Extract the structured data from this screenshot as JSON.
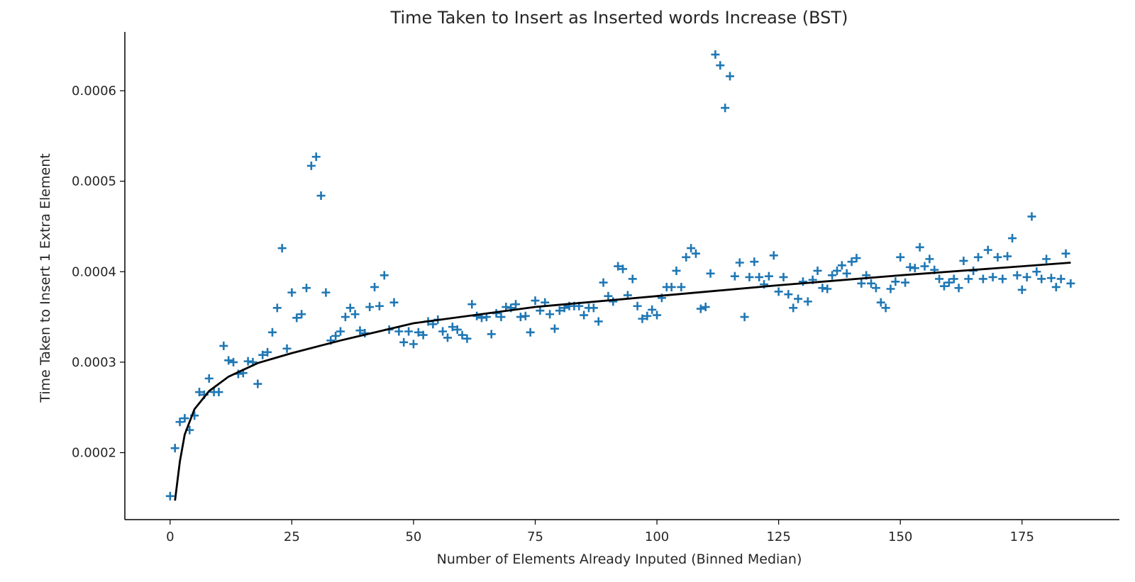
{
  "chart_data": {
    "type": "scatter",
    "title": "Time Taken to Insert as Inserted words Increase (BST)",
    "xlabel": "Number of Elements Already Inputed (Binned Median)",
    "ylabel": "Time Taken to Insert 1 Extra Element",
    "xlim": [
      -9.3,
      195
    ],
    "ylim": [
      0.000126,
      0.000665
    ],
    "xticks": [
      0,
      25,
      50,
      75,
      100,
      125,
      150,
      175
    ],
    "xtick_labels": [
      "0",
      "25",
      "50",
      "75",
      "100",
      "125",
      "150",
      "175"
    ],
    "yticks": [
      0.0002,
      0.0003,
      0.0004,
      0.0005,
      0.0006
    ],
    "ytick_labels": [
      "0.0002",
      "0.0003",
      "0.0004",
      "0.0005",
      "0.0006"
    ],
    "grid": false,
    "legend": "none",
    "marker": "+",
    "marker_color": "#1f77b4",
    "line_color": "#000000",
    "fit_curve": {
      "description": "logarithmic fit",
      "x": [
        1,
        2,
        3,
        5,
        8,
        12,
        18,
        25,
        35,
        50,
        75,
        100,
        125,
        150,
        175,
        185
      ],
      "y": [
        0.000147,
        0.00019,
        0.00022,
        0.000248,
        0.000268,
        0.000284,
        0.000299,
        0.00031,
        0.000324,
        0.000343,
        0.000361,
        0.000373,
        0.000385,
        0.000396,
        0.000406,
        0.00041
      ]
    },
    "series": [
      {
        "x": [
          0,
          1,
          2,
          3,
          4,
          5,
          6,
          7,
          8,
          9,
          10,
          11,
          12,
          13,
          14,
          15,
          16,
          17,
          18,
          19,
          20,
          21,
          22,
          23,
          24,
          25,
          26,
          27,
          28,
          29,
          30,
          31,
          32,
          33,
          34,
          35,
          36,
          37,
          38,
          39,
          40,
          41,
          42,
          43,
          44,
          45,
          46,
          47,
          48,
          49,
          50,
          51,
          52,
          53,
          54,
          55,
          56,
          57,
          58,
          59,
          60,
          61,
          62,
          63,
          64,
          65,
          66,
          67,
          68,
          69,
          70,
          71,
          72,
          73,
          74,
          75,
          76,
          77,
          78,
          79,
          80,
          81,
          82,
          83,
          84,
          85,
          86,
          87,
          88,
          89,
          90,
          91,
          92,
          93,
          94,
          95,
          96,
          97,
          98,
          99,
          100,
          101,
          102,
          103,
          104,
          105,
          106,
          107,
          108,
          109,
          110,
          111,
          112,
          113,
          114,
          115,
          116,
          117,
          118,
          119,
          120,
          121,
          122,
          123,
          124,
          125,
          126,
          127,
          128,
          129,
          130,
          131,
          132,
          133,
          134,
          135,
          136,
          137,
          138,
          139,
          140,
          141,
          142,
          143,
          144,
          145,
          146,
          147,
          148,
          149,
          150,
          151,
          152,
          153,
          154,
          155,
          156,
          157,
          158,
          159,
          160,
          161,
          162,
          163,
          164,
          165,
          166,
          167,
          168,
          169,
          170,
          171,
          172,
          173,
          174,
          175,
          176,
          177,
          178,
          179,
          180,
          181,
          182,
          183,
          184,
          185
        ],
        "y": [
          0.000152,
          0.000205,
          0.000234,
          0.000238,
          0.000225,
          0.000241,
          0.000267,
          0.000264,
          0.000282,
          0.000267,
          0.000267,
          0.000318,
          0.000302,
          0.0003,
          0.000287,
          0.000288,
          0.000301,
          0.0003,
          0.000276,
          0.000308,
          0.000311,
          0.000333,
          0.00036,
          0.000426,
          0.000315,
          0.000377,
          0.000349,
          0.000353,
          0.000382,
          0.000517,
          0.000527,
          0.000484,
          0.000377,
          0.000324,
          0.000329,
          0.000334,
          0.00035,
          0.00036,
          0.000353,
          0.000335,
          0.000332,
          0.000361,
          0.000383,
          0.000362,
          0.000396,
          0.000336,
          0.000366,
          0.000334,
          0.000322,
          0.000334,
          0.00032,
          0.000333,
          0.00033,
          0.000345,
          0.000342,
          0.000347,
          0.000334,
          0.000327,
          0.000339,
          0.000336,
          0.00033,
          0.000326,
          0.000364,
          0.000351,
          0.000349,
          0.00035,
          0.000331,
          0.000354,
          0.00035,
          0.000361,
          0.00036,
          0.000364,
          0.00035,
          0.000351,
          0.000333,
          0.000368,
          0.000357,
          0.000366,
          0.000353,
          0.000337,
          0.000357,
          0.00036,
          0.000362,
          0.000362,
          0.000362,
          0.000352,
          0.00036,
          0.00036,
          0.000345,
          0.000388,
          0.000373,
          0.000367,
          0.000406,
          0.000403,
          0.000374,
          0.000392,
          0.000362,
          0.000348,
          0.000351,
          0.000358,
          0.000352,
          0.000371,
          0.000383,
          0.000383,
          0.000401,
          0.000383,
          0.000416,
          0.000426,
          0.00042,
          0.000359,
          0.000361,
          0.000398,
          0.00064,
          0.000628,
          0.000581,
          0.000616,
          0.000395,
          0.00041,
          0.00035,
          0.000394,
          0.000411,
          0.000394,
          0.000386,
          0.000395,
          0.000418,
          0.000378,
          0.000394,
          0.000375,
          0.00036,
          0.00037,
          0.000389,
          0.000367,
          0.000391,
          0.000401,
          0.000382,
          0.000381,
          0.000396,
          0.000401,
          0.000407,
          0.000398,
          0.000411,
          0.000415,
          0.000387,
          0.000396,
          0.000387,
          0.000382,
          0.000366,
          0.00036,
          0.000381,
          0.000389,
          0.000416,
          0.000388,
          0.000405,
          0.000404,
          0.000427,
          0.000406,
          0.000414,
          0.000402,
          0.000392,
          0.000384,
          0.000388,
          0.000392,
          0.000382,
          0.000412,
          0.000392,
          0.000401,
          0.000416,
          0.000392,
          0.000424,
          0.000394,
          0.000416,
          0.000392,
          0.000417,
          0.000437,
          0.000396,
          0.00038,
          0.000394,
          0.000461,
          0.0004,
          0.000392,
          0.000414,
          0.000393,
          0.000383,
          0.000392,
          0.00042,
          0.000387
        ]
      }
    ]
  }
}
